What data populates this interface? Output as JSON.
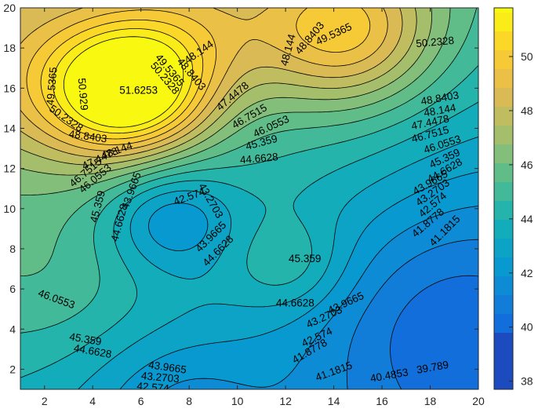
{
  "chart_data": {
    "type": "contourf",
    "title": "",
    "xlabel": "",
    "ylabel": "",
    "xlim": [
      1,
      20
    ],
    "ylim": [
      1,
      20
    ],
    "x_ticks": [
      2,
      4,
      6,
      8,
      10,
      12,
      14,
      16,
      18,
      20
    ],
    "y_ticks": [
      2,
      4,
      6,
      8,
      10,
      12,
      14,
      16,
      18,
      20
    ],
    "colorbar": {
      "colormap": "parula",
      "limits": [
        37.7,
        51.8
      ],
      "ticks": [
        38,
        40,
        42,
        44,
        46,
        48,
        50
      ],
      "location": "right"
    },
    "contour_levels": [
      39.789,
      40.4853,
      41.1815,
      41.8778,
      42.574,
      43.2703,
      43.9665,
      44.6628,
      45.359,
      46.0553,
      46.7515,
      47.4478,
      48.144,
      48.8403,
      49.5365,
      50.2328,
      50.929,
      51.6253
    ],
    "features": [
      {
        "kind": "maximum",
        "x": 5.8,
        "y": 15.8,
        "value": 51.75
      },
      {
        "kind": "maximum",
        "x": 14.5,
        "y": 18.3,
        "value": 50.6
      },
      {
        "kind": "minimum",
        "x": 7.2,
        "y": 9.7,
        "value": 42.3
      },
      {
        "kind": "maximum",
        "x": 12.2,
        "y": 7.3,
        "value": 45.6
      }
    ],
    "contour_labels": [
      {
        "text": "51.6253",
        "x": 5.9,
        "y": 15.9,
        "angle": 0
      },
      {
        "text": "50.929",
        "x": 3.6,
        "y": 15.7,
        "angle": 85
      },
      {
        "text": "50.2328",
        "x": 2.9,
        "y": 14.5,
        "angle": 35
      },
      {
        "text": "49.5365",
        "x": 2.3,
        "y": 16.1,
        "angle": -85
      },
      {
        "text": "48.8403",
        "x": 3.8,
        "y": 13.6,
        "angle": 8
      },
      {
        "text": "48.144",
        "x": 5.0,
        "y": 12.9,
        "angle": -20
      },
      {
        "text": "47.4478",
        "x": 4.3,
        "y": 12.5,
        "angle": -25
      },
      {
        "text": "46.7515",
        "x": 3.7,
        "y": 11.8,
        "angle": -40
      },
      {
        "text": "46.0553",
        "x": 4.1,
        "y": 11.5,
        "angle": -40
      },
      {
        "text": "45.359",
        "x": 4.2,
        "y": 10.1,
        "angle": -75
      },
      {
        "text": "44.6628",
        "x": 5.1,
        "y": 9.3,
        "angle": -75
      },
      {
        "text": "43.9665",
        "x": 5.6,
        "y": 10.9,
        "angle": -70
      },
      {
        "text": "42.574",
        "x": 8.0,
        "y": 10.6,
        "angle": -20
      },
      {
        "text": "43.2703",
        "x": 8.9,
        "y": 10.4,
        "angle": 60
      },
      {
        "text": "43.9665",
        "x": 8.9,
        "y": 8.6,
        "angle": -45
      },
      {
        "text": "44.6628",
        "x": 9.2,
        "y": 7.9,
        "angle": -45
      },
      {
        "text": "45.359",
        "x": 12.8,
        "y": 7.5,
        "angle": 0
      },
      {
        "text": "49.5365",
        "x": 7.2,
        "y": 16.9,
        "angle": 50
      },
      {
        "text": "50.2328",
        "x": 7.0,
        "y": 16.5,
        "angle": 50
      },
      {
        "text": "48.8403",
        "x": 8.1,
        "y": 16.7,
        "angle": 50
      },
      {
        "text": "48.144",
        "x": 8.4,
        "y": 17.8,
        "angle": -35
      },
      {
        "text": "47.4478",
        "x": 9.8,
        "y": 15.6,
        "angle": -40
      },
      {
        "text": "46.7515",
        "x": 10.5,
        "y": 14.6,
        "angle": -30
      },
      {
        "text": "46.0553",
        "x": 11.4,
        "y": 14.1,
        "angle": -25
      },
      {
        "text": "45.359",
        "x": 11.0,
        "y": 13.3,
        "angle": -15
      },
      {
        "text": "44.6628",
        "x": 10.9,
        "y": 12.5,
        "angle": -5
      },
      {
        "text": "48.144",
        "x": 12.1,
        "y": 17.9,
        "angle": -75
      },
      {
        "text": "48.8403",
        "x": 13.0,
        "y": 18.5,
        "angle": -50
      },
      {
        "text": "49.5365",
        "x": 14.0,
        "y": 18.7,
        "angle": -25
      },
      {
        "text": "50.2328",
        "x": 18.2,
        "y": 18.3,
        "angle": -5
      },
      {
        "text": "48.8403",
        "x": 18.4,
        "y": 15.5,
        "angle": -10
      },
      {
        "text": "48.144",
        "x": 18.4,
        "y": 14.9,
        "angle": -10
      },
      {
        "text": "47.4478",
        "x": 18.0,
        "y": 14.3,
        "angle": -12
      },
      {
        "text": "46.7515",
        "x": 18.0,
        "y": 13.7,
        "angle": -15
      },
      {
        "text": "46.0553",
        "x": 18.5,
        "y": 13.2,
        "angle": -18
      },
      {
        "text": "45.359",
        "x": 18.6,
        "y": 12.5,
        "angle": -25
      },
      {
        "text": "44.6628",
        "x": 18.6,
        "y": 11.9,
        "angle": -30
      },
      {
        "text": "43.9665",
        "x": 18.0,
        "y": 11.3,
        "angle": -30
      },
      {
        "text": "43.2703",
        "x": 18.1,
        "y": 10.8,
        "angle": -35
      },
      {
        "text": "42.574",
        "x": 18.1,
        "y": 10.2,
        "angle": -40
      },
      {
        "text": "41.8778",
        "x": 17.9,
        "y": 9.3,
        "angle": -40
      },
      {
        "text": "41.1815",
        "x": 18.6,
        "y": 8.9,
        "angle": -45
      },
      {
        "text": "46.0553",
        "x": 2.5,
        "y": 5.5,
        "angle": 20
      },
      {
        "text": "45.359",
        "x": 3.7,
        "y": 3.5,
        "angle": 10
      },
      {
        "text": "44.6628",
        "x": 4.0,
        "y": 2.9,
        "angle": 10
      },
      {
        "text": "43.9665",
        "x": 7.1,
        "y": 2.1,
        "angle": 8
      },
      {
        "text": "43.2703",
        "x": 6.8,
        "y": 1.6,
        "angle": 5
      },
      {
        "text": "42.574",
        "x": 6.5,
        "y": 1.1,
        "angle": 5
      },
      {
        "text": "44.6628",
        "x": 12.4,
        "y": 5.3,
        "angle": 0
      },
      {
        "text": "43.9665",
        "x": 14.5,
        "y": 5.3,
        "angle": -25
      },
      {
        "text": "43.2703",
        "x": 13.6,
        "y": 4.6,
        "angle": -25
      },
      {
        "text": "42.574",
        "x": 13.3,
        "y": 3.6,
        "angle": -25
      },
      {
        "text": "41.8778",
        "x": 13.0,
        "y": 2.9,
        "angle": -30
      },
      {
        "text": "41.1815",
        "x": 14.0,
        "y": 1.9,
        "angle": -20
      },
      {
        "text": "40.4853",
        "x": 16.3,
        "y": 1.7,
        "angle": -10
      },
      {
        "text": "39.789",
        "x": 18.1,
        "y": 2.1,
        "angle": -10
      }
    ]
  },
  "colors": {
    "plot_border": "#262626",
    "contour_line": "#000000",
    "background": "#ffffff"
  }
}
